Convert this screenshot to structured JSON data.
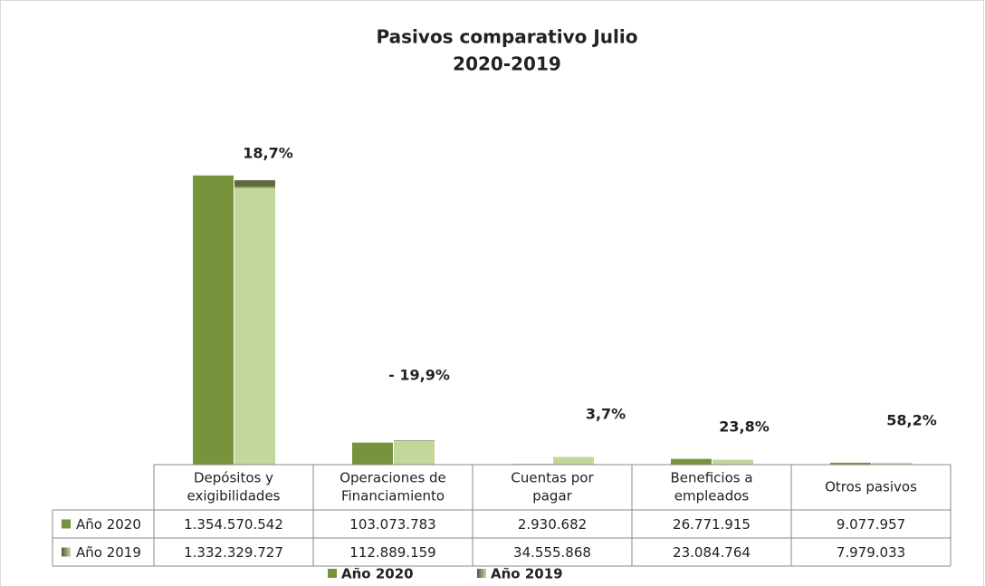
{
  "chart_data": {
    "type": "bar",
    "title": "Pasivos comparativo Julio",
    "subtitle": "2020-2019",
    "categories": [
      [
        "Depósitos y",
        "exigibilidades"
      ],
      [
        "Operaciones de",
        "Financiamiento"
      ],
      [
        "Cuentas por",
        "pagar"
      ],
      [
        "Beneficios a",
        "empleados"
      ],
      [
        "Otros pasivos"
      ]
    ],
    "series": [
      {
        "name": "Año 2020",
        "color": "#77933c",
        "values": [
          1354570542,
          103073783,
          2930682,
          26771915,
          9077957
        ],
        "value_labels": [
          "1.354.570.542",
          "103.073.783",
          "2.930.682",
          "26.771.915",
          "9.077.957"
        ]
      },
      {
        "name": "Año 2019",
        "color": "#c4d79b",
        "values": [
          1332329727,
          112889159,
          34555868,
          23084764,
          7979033
        ],
        "value_labels": [
          "1.332.329.727",
          "112.889.159",
          "34.555.868",
          "23.084.764",
          "7.979.033"
        ]
      }
    ],
    "annotations": [
      "18,7%",
      "- 19,9%",
      "3,7%",
      "23,8%",
      "58,2%"
    ],
    "ylim": [
      0,
      1400000000
    ]
  }
}
